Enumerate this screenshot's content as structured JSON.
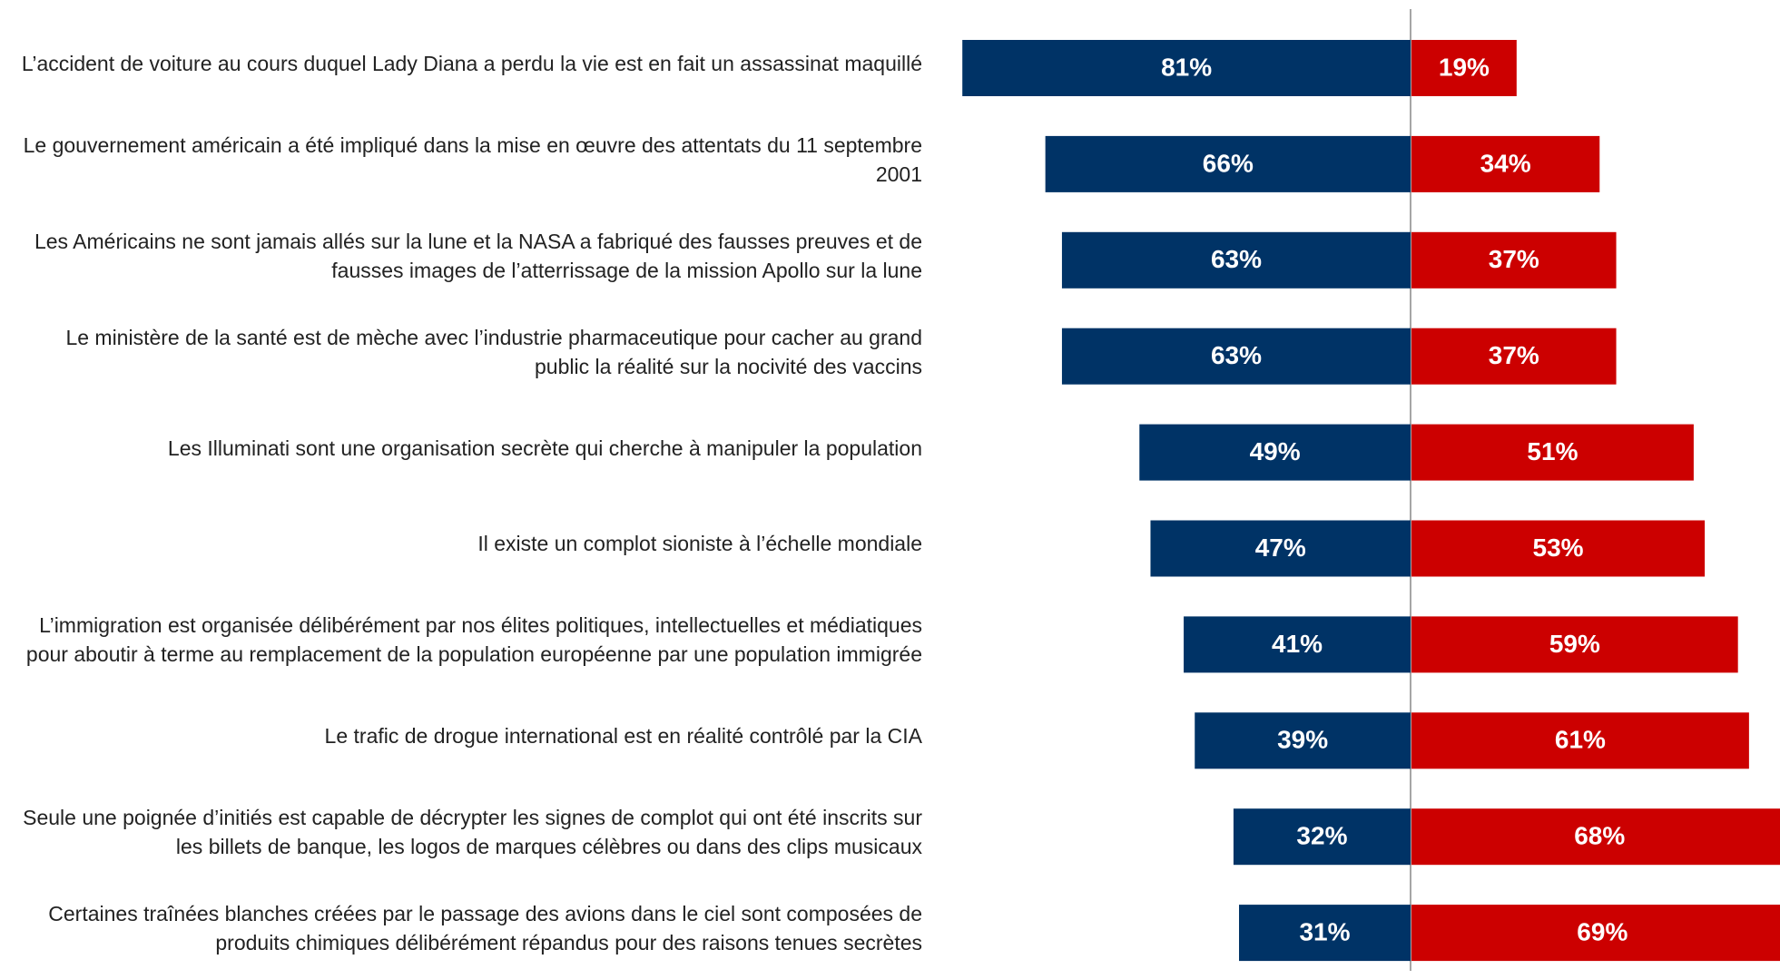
{
  "chart_data": {
    "type": "diverging_bar",
    "categories": [
      "L’accident de voiture au cours duquel Lady Diana a perdu la vie est en fait un assassinat maquillé",
      "Le gouvernement américain a été impliqué dans la mise en œuvre des attentats du 11 septembre 2001",
      "Les Américains ne sont jamais allés sur la lune et la NASA a fabriqué des fausses preuves et de fausses images de l’atterrissage de la mission Apollo sur la lune",
      "Le ministère de la santé est de mèche avec l’industrie pharmaceutique pour cacher au grand public la réalité sur la nocivité des vaccins",
      "Les Illuminati sont une organisation secrète qui cherche à manipuler la population",
      "Il existe un complot sioniste à l’échelle mondiale",
      "L’immigration est organisée délibérément par nos élites politiques, intellectuelles et médiatiques pour aboutir à terme au remplacement de la population européenne par une population immigrée",
      "Le trafic de drogue international est en réalité contrôlé par la CIA",
      "Seule une poignée d’initiés est capable de décrypter les signes de complot qui ont été inscrits sur les billets de banque, les logos de marques célèbres ou dans des clips musicaux",
      "Certaines traînées blanches créées par le passage des avions dans le ciel sont composées de produits chimiques délibérément répandus pour des raisons tenues secrètes"
    ],
    "series": [
      {
        "color": "#003366",
        "side": "left",
        "values": [
          81,
          66,
          63,
          63,
          49,
          47,
          41,
          39,
          32,
          31
        ],
        "value_labels": [
          "81%",
          "66%",
          "63%",
          "63%",
          "49%",
          "47%",
          "41%",
          "39%",
          "32%",
          "31%"
        ]
      },
      {
        "color": "#cc0000",
        "side": "right",
        "values": [
          19,
          34,
          37,
          37,
          51,
          53,
          59,
          61,
          68,
          69
        ],
        "value_labels": [
          "19%",
          "34%",
          "37%",
          "37%",
          "51%",
          "53%",
          "59%",
          "61%",
          "68%",
          "69%"
        ]
      }
    ]
  }
}
